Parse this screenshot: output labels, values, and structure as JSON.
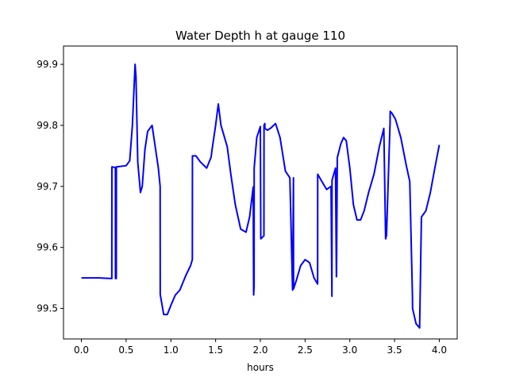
{
  "chart_data": {
    "type": "line",
    "title": "Water Depth h at gauge 110",
    "xlabel": "hours",
    "ylabel": "",
    "xlim": [
      -0.2,
      4.2
    ],
    "ylim": [
      99.45,
      99.93
    ],
    "xticks": [
      0.0,
      0.5,
      1.0,
      1.5,
      2.0,
      2.5,
      3.0,
      3.5,
      4.0
    ],
    "xtick_labels": [
      "0.0",
      "0.5",
      "1.0",
      "1.5",
      "2.0",
      "2.5",
      "3.0",
      "3.5",
      "4.0"
    ],
    "yticks": [
      99.5,
      99.6,
      99.7,
      99.8,
      99.9
    ],
    "ytick_labels": [
      "99.5",
      "99.6",
      "99.7",
      "99.8",
      "99.9"
    ],
    "grid": false,
    "series": [
      {
        "color": "#0000ff",
        "x": [
          0.0,
          0.2,
          0.34,
          0.341,
          0.38,
          0.381,
          0.39,
          0.391,
          0.5,
          0.54,
          0.57,
          0.6,
          0.61,
          0.63,
          0.66,
          0.68,
          0.71,
          0.74,
          0.79,
          0.82,
          0.86,
          0.88,
          0.881,
          0.92,
          0.96,
          1.0,
          1.05,
          1.1,
          1.17,
          1.22,
          1.24,
          1.241,
          1.28,
          1.33,
          1.4,
          1.45,
          1.46,
          1.5,
          1.53,
          1.56,
          1.6,
          1.63,
          1.67,
          1.72,
          1.78,
          1.84,
          1.88,
          1.92,
          1.925,
          1.93,
          1.931,
          1.96,
          2.0,
          2.005,
          2.04,
          2.041,
          2.05,
          2.051,
          2.08,
          2.12,
          2.17,
          2.22,
          2.28,
          2.33,
          2.36,
          2.361,
          2.37,
          2.371,
          2.4,
          2.45,
          2.5,
          2.55,
          2.6,
          2.64,
          2.641,
          2.68,
          2.74,
          2.79,
          2.8,
          2.801,
          2.84,
          2.85,
          2.851,
          2.86,
          2.9,
          2.93,
          2.96,
          3.0,
          3.04,
          3.08,
          3.12,
          3.16,
          3.21,
          3.27,
          3.33,
          3.38,
          3.4,
          3.41,
          3.411,
          3.45,
          3.451,
          3.47,
          3.51,
          3.57,
          3.63,
          3.67,
          3.7,
          3.701,
          3.74,
          3.78,
          3.8,
          3.801,
          3.85,
          3.9,
          3.95,
          4.0
        ],
        "y": [
          99.55,
          99.55,
          99.549,
          99.732,
          99.731,
          99.549,
          99.549,
          99.732,
          99.734,
          99.742,
          99.8,
          99.9,
          99.88,
          99.74,
          99.69,
          99.7,
          99.76,
          99.79,
          99.8,
          99.77,
          99.73,
          99.7,
          99.523,
          99.49,
          99.49,
          99.505,
          99.522,
          99.53,
          99.555,
          99.57,
          99.58,
          99.75,
          99.75,
          99.74,
          99.73,
          99.748,
          99.76,
          99.8,
          99.835,
          99.8,
          99.78,
          99.765,
          99.72,
          99.67,
          99.63,
          99.625,
          99.65,
          99.699,
          99.522,
          99.536,
          99.73,
          99.78,
          99.798,
          99.614,
          99.619,
          99.8,
          99.803,
          99.795,
          99.792,
          99.796,
          99.803,
          99.78,
          99.725,
          99.714,
          99.53,
          99.534,
          99.714,
          99.532,
          99.545,
          99.57,
          99.58,
          99.575,
          99.55,
          99.54,
          99.72,
          99.71,
          99.695,
          99.7,
          99.52,
          99.71,
          99.73,
          99.552,
          99.556,
          99.747,
          99.77,
          99.78,
          99.775,
          99.73,
          99.67,
          99.645,
          99.645,
          99.66,
          99.69,
          99.72,
          99.765,
          99.795,
          99.614,
          99.62,
          99.625,
          99.805,
          99.823,
          99.82,
          99.81,
          99.78,
          99.735,
          99.708,
          99.52,
          99.5,
          99.475,
          99.468,
          99.648,
          99.65,
          99.66,
          99.69,
          99.73,
          99.768
        ]
      }
    ]
  }
}
